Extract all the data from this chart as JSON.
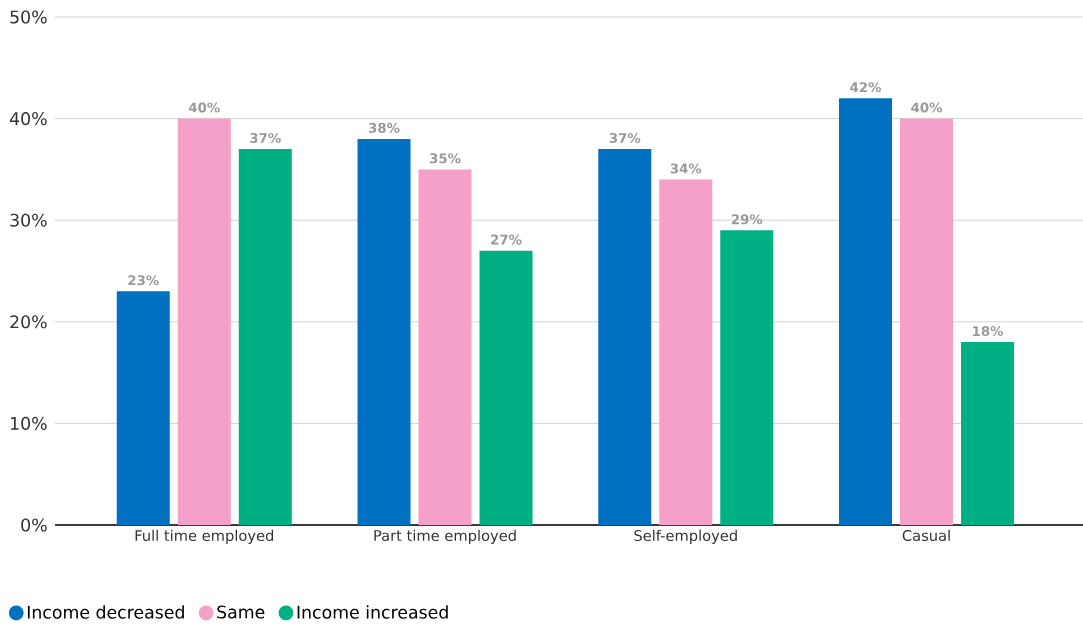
{
  "chart_data": {
    "type": "bar",
    "categories": [
      "Full time employed",
      "Part time employed",
      "Self-employed",
      "Casual"
    ],
    "series": [
      {
        "name": "Income decreased",
        "color": "#0070c0",
        "values": [
          23,
          38,
          37,
          42
        ],
        "value_labels": [
          "23%",
          "38%",
          "37%",
          "42%"
        ]
      },
      {
        "name": "Same",
        "color": "#f4a0c8",
        "values": [
          40,
          35,
          34,
          40
        ],
        "value_labels": [
          "40%",
          "35%",
          "34%",
          "40%"
        ]
      },
      {
        "name": "Income increased",
        "color": "#00b085",
        "values": [
          37,
          27,
          29,
          18
        ],
        "value_labels": [
          "37%",
          "27%",
          "29%",
          "18%"
        ]
      }
    ],
    "ylim": [
      0,
      50
    ],
    "yticks": [
      {
        "value": 0,
        "label": "0%"
      },
      {
        "value": 10,
        "label": "10%"
      },
      {
        "value": 20,
        "label": "20%"
      },
      {
        "value": 30,
        "label": "30%"
      },
      {
        "value": 40,
        "label": "40%"
      },
      {
        "value": 50,
        "label": "50%"
      }
    ],
    "grid": "y",
    "legend": "bottom left"
  }
}
